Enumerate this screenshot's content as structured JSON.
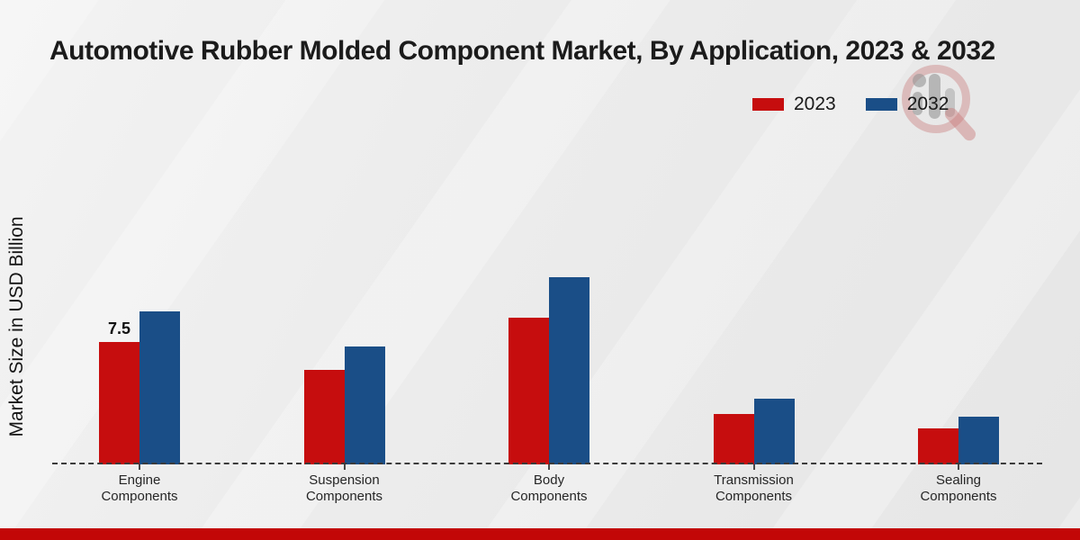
{
  "title": "Automotive Rubber Molded Component Market, By Application, 2023 & 2032",
  "y_axis_label": "Market Size in USD Billion",
  "legend": [
    {
      "label": "2023",
      "color": "#c60d0e"
    },
    {
      "label": "2032",
      "color": "#1a4e87"
    }
  ],
  "watermark_icon": "market-research-logo",
  "chart_data": {
    "type": "bar",
    "title": "Automotive Rubber Molded Component Market, By Application, 2023 & 2032",
    "ylabel": "Market Size in USD Billion",
    "xlabel": "",
    "categories": [
      "Engine Components",
      "Suspension Components",
      "Body Components",
      "Transmission Components",
      "Sealing Components"
    ],
    "series": [
      {
        "name": "2023",
        "color": "#c60d0e",
        "values": [
          7.5,
          5.8,
          9.0,
          3.1,
          2.2
        ],
        "data_labels": [
          "7.5",
          "",
          "",
          "",
          ""
        ]
      },
      {
        "name": "2032",
        "color": "#1a4e87",
        "values": [
          9.4,
          7.2,
          11.5,
          4.0,
          2.9
        ],
        "data_labels": [
          "",
          "",
          "",
          "",
          ""
        ]
      }
    ],
    "ylim": [
      0,
      12.5
    ],
    "grid": false,
    "y_ticks_visible": false,
    "legend_position": "top-right",
    "baseline_style": "dashed"
  }
}
